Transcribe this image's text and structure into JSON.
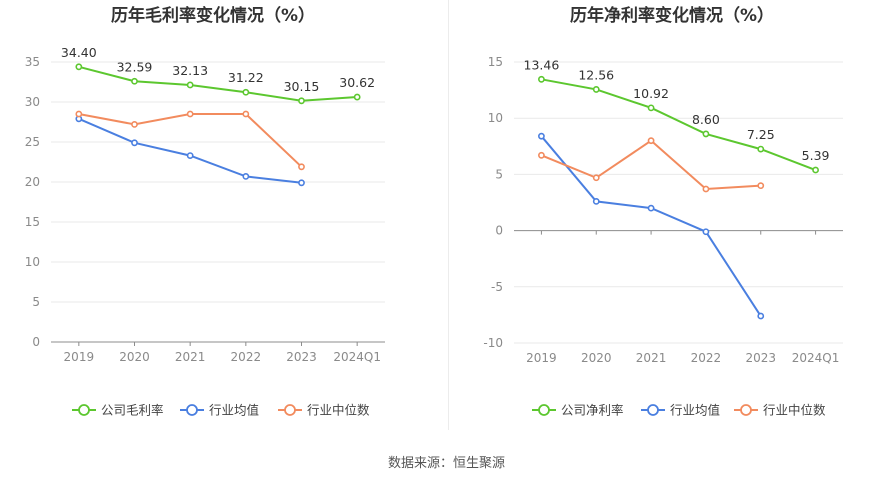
{
  "source": "数据来源：恒生聚源",
  "chart_data": [
    {
      "type": "line",
      "title": "历年毛利率变化情况（%）",
      "categories": [
        "2019",
        "2020",
        "2021",
        "2022",
        "2023",
        "2024Q1"
      ],
      "ylim": [
        0,
        35
      ],
      "yticks": [
        0,
        5,
        10,
        15,
        20,
        25,
        30,
        35
      ],
      "grid": true,
      "legend": "bottom",
      "series": [
        {
          "name": "公司毛利率",
          "color": "#5cc72f",
          "values": [
            34.4,
            32.59,
            32.13,
            31.22,
            30.15,
            30.62
          ],
          "labels": [
            "34.40",
            "32.59",
            "32.13",
            "31.22",
            "30.15",
            "30.62"
          ]
        },
        {
          "name": "行业均值",
          "color": "#4a7fe0",
          "values": [
            27.9,
            24.9,
            23.3,
            20.7,
            19.9,
            null
          ]
        },
        {
          "name": "行业中位数",
          "color": "#f28b5e",
          "values": [
            28.5,
            27.2,
            28.5,
            28.5,
            21.9,
            null
          ]
        }
      ]
    },
    {
      "type": "line",
      "title": "历年净利率变化情况（%）",
      "categories": [
        "2019",
        "2020",
        "2021",
        "2022",
        "2023",
        "2024Q1"
      ],
      "ylim": [
        -10,
        15
      ],
      "yticks": [
        -10,
        -5,
        0,
        5,
        10,
        15
      ],
      "grid": true,
      "legend": "bottom",
      "series": [
        {
          "name": "公司净利率",
          "color": "#5cc72f",
          "values": [
            13.46,
            12.56,
            10.92,
            8.6,
            7.25,
            5.39
          ],
          "labels": [
            "13.46",
            "12.56",
            "10.92",
            "8.60",
            "7.25",
            "5.39"
          ]
        },
        {
          "name": "行业均值",
          "color": "#4a7fe0",
          "values": [
            8.4,
            2.6,
            2.0,
            -0.1,
            -7.6,
            null
          ]
        },
        {
          "name": "行业中位数",
          "color": "#f28b5e",
          "values": [
            6.7,
            4.7,
            8.0,
            3.7,
            4.0,
            null
          ]
        }
      ]
    }
  ]
}
